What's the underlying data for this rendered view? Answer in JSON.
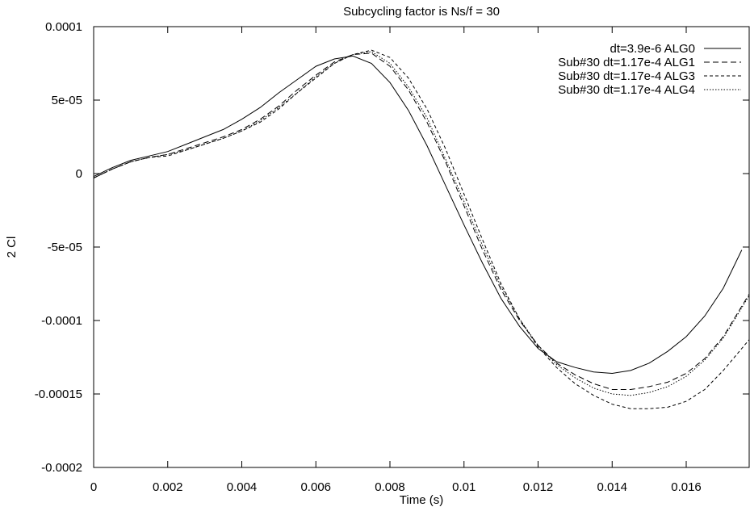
{
  "chart_data": {
    "type": "line",
    "title": "Subcycling factor is Ns/f = 30",
    "xlabel": "Time (s)",
    "ylabel": "2 Cl",
    "xlim": [
      0,
      0.0177
    ],
    "ylim": [
      -0.0002,
      0.0001
    ],
    "x_ticks": [
      {
        "value": 0,
        "label": "0"
      },
      {
        "value": 0.002,
        "label": "0.002"
      },
      {
        "value": 0.004,
        "label": "0.004"
      },
      {
        "value": 0.006,
        "label": "0.006"
      },
      {
        "value": 0.008,
        "label": "0.008"
      },
      {
        "value": 0.01,
        "label": "0.01"
      },
      {
        "value": 0.012,
        "label": "0.012"
      },
      {
        "value": 0.014,
        "label": "0.014"
      },
      {
        "value": 0.016,
        "label": "0.016"
      }
    ],
    "y_ticks": [
      {
        "value": 0.0001,
        "label": "0.0001"
      },
      {
        "value": 5e-05,
        "label": "5e-05"
      },
      {
        "value": 0,
        "label": "0"
      },
      {
        "value": -5e-05,
        "label": "-5e-05"
      },
      {
        "value": -0.0001,
        "label": "-0.0001"
      },
      {
        "value": -0.00015,
        "label": "-0.00015"
      },
      {
        "value": -0.0002,
        "label": "-0.0002"
      }
    ],
    "grid": false,
    "legend_position": "top-right",
    "series": [
      {
        "name": "dt=3.9e-6 ALG0",
        "dash": "solid",
        "color": "#000000",
        "x": [
          0,
          0.0005,
          0.001,
          0.0015,
          0.002,
          0.0025,
          0.003,
          0.0035,
          0.004,
          0.0045,
          0.005,
          0.0055,
          0.006,
          0.0065,
          0.007,
          0.0075,
          0.008,
          0.0085,
          0.009,
          0.0095,
          0.01,
          0.0105,
          0.011,
          0.0115,
          0.012,
          0.0125,
          0.013,
          0.0135,
          0.014,
          0.0145,
          0.015,
          0.0155,
          0.016,
          0.0165,
          0.017,
          0.0175
        ],
        "y": [
          -2e-06,
          4e-06,
          9e-06,
          1.2e-05,
          1.5e-05,
          2e-05,
          2.5e-05,
          3e-05,
          3.7e-05,
          4.5e-05,
          5.5e-05,
          6.4e-05,
          7.3e-05,
          7.8e-05,
          8e-05,
          7.5e-05,
          6.2e-05,
          4.3e-05,
          1.9e-05,
          -8e-06,
          -3.5e-05,
          -6.1e-05,
          -8.5e-05,
          -0.000104,
          -0.000119,
          -0.000128,
          -0.000132,
          -0.000135,
          -0.000136,
          -0.000134,
          -0.000129,
          -0.000121,
          -0.000111,
          -9.7e-05,
          -7.8e-05,
          -5.2e-05
        ]
      },
      {
        "name": "Sub#30 dt=1.17e-4 ALG1",
        "dash": "7,4",
        "color": "#000000",
        "x": [
          0,
          0.0005,
          0.001,
          0.0015,
          0.002,
          0.0025,
          0.003,
          0.0035,
          0.004,
          0.0045,
          0.005,
          0.0055,
          0.006,
          0.0065,
          0.007,
          0.0075,
          0.008,
          0.0085,
          0.009,
          0.0095,
          0.01,
          0.0105,
          0.011,
          0.0115,
          0.012,
          0.0125,
          0.013,
          0.0135,
          0.014,
          0.0145,
          0.015,
          0.0155,
          0.016,
          0.0165,
          0.017,
          0.0177
        ],
        "y": [
          -3e-06,
          3e-06,
          8e-06,
          1.1e-05,
          1.3e-05,
          1.7e-05,
          2.1e-05,
          2.5e-05,
          3e-05,
          3.7e-05,
          4.6e-05,
          5.7e-05,
          6.7e-05,
          7.6e-05,
          8.1e-05,
          8.2e-05,
          7.3e-05,
          5.7e-05,
          3.5e-05,
          8e-06,
          -2.2e-05,
          -5.2e-05,
          -7.9e-05,
          -0.0001,
          -0.000117,
          -0.000129,
          -0.000137,
          -0.000143,
          -0.000147,
          -0.000147,
          -0.000145,
          -0.000142,
          -0.000136,
          -0.000126,
          -0.000111,
          -8.2e-05
        ]
      },
      {
        "name": "Sub#30 dt=1.17e-4 ALG3",
        "dash": "4,3",
        "color": "#000000",
        "x": [
          0,
          0.0005,
          0.001,
          0.0015,
          0.002,
          0.0025,
          0.003,
          0.0035,
          0.004,
          0.0045,
          0.005,
          0.0055,
          0.006,
          0.0065,
          0.007,
          0.0075,
          0.008,
          0.0085,
          0.009,
          0.0095,
          0.01,
          0.0105,
          0.011,
          0.0115,
          0.012,
          0.0125,
          0.013,
          0.0135,
          0.014,
          0.0145,
          0.015,
          0.0155,
          0.016,
          0.0165,
          0.017,
          0.0177
        ],
        "y": [
          -3e-06,
          3e-06,
          8e-06,
          1.1e-05,
          1.2e-05,
          1.6e-05,
          2e-05,
          2.4e-05,
          2.9e-05,
          3.5e-05,
          4.4e-05,
          5.5e-05,
          6.5e-05,
          7.5e-05,
          8.1e-05,
          8.4e-05,
          7.9e-05,
          6.5e-05,
          4.4e-05,
          1.7e-05,
          -1.4e-05,
          -4.5e-05,
          -7.5e-05,
          -9.9e-05,
          -0.000118,
          -0.000132,
          -0.000143,
          -0.000151,
          -0.000157,
          -0.00016,
          -0.00016,
          -0.000159,
          -0.000155,
          -0.000147,
          -0.000134,
          -0.000113
        ]
      },
      {
        "name": "Sub#30 dt=1.17e-4 ALG4",
        "dash": "1.5,2",
        "color": "#000000",
        "x": [
          0,
          0.0005,
          0.001,
          0.0015,
          0.002,
          0.0025,
          0.003,
          0.0035,
          0.004,
          0.0045,
          0.005,
          0.0055,
          0.006,
          0.0065,
          0.007,
          0.0075,
          0.008,
          0.0085,
          0.009,
          0.0095,
          0.01,
          0.0105,
          0.011,
          0.0115,
          0.012,
          0.0125,
          0.013,
          0.0135,
          0.014,
          0.0145,
          0.015,
          0.0155,
          0.016,
          0.0165,
          0.017,
          0.0177
        ],
        "y": [
          -3e-06,
          3e-06,
          8e-06,
          1.1e-05,
          1.3e-05,
          1.6e-05,
          2e-05,
          2.4e-05,
          2.9e-05,
          3.6e-05,
          4.5e-05,
          5.5e-05,
          6.6e-05,
          7.5e-05,
          8.1e-05,
          8.3e-05,
          7.5e-05,
          5.9e-05,
          3.8e-05,
          1e-05,
          -1.9e-05,
          -4.9e-05,
          -7.7e-05,
          -9.9e-05,
          -0.000117,
          -0.00013,
          -0.000139,
          -0.000146,
          -0.00015,
          -0.000151,
          -0.000149,
          -0.000145,
          -0.000138,
          -0.000127,
          -0.000112,
          -8.3e-05
        ]
      }
    ]
  }
}
